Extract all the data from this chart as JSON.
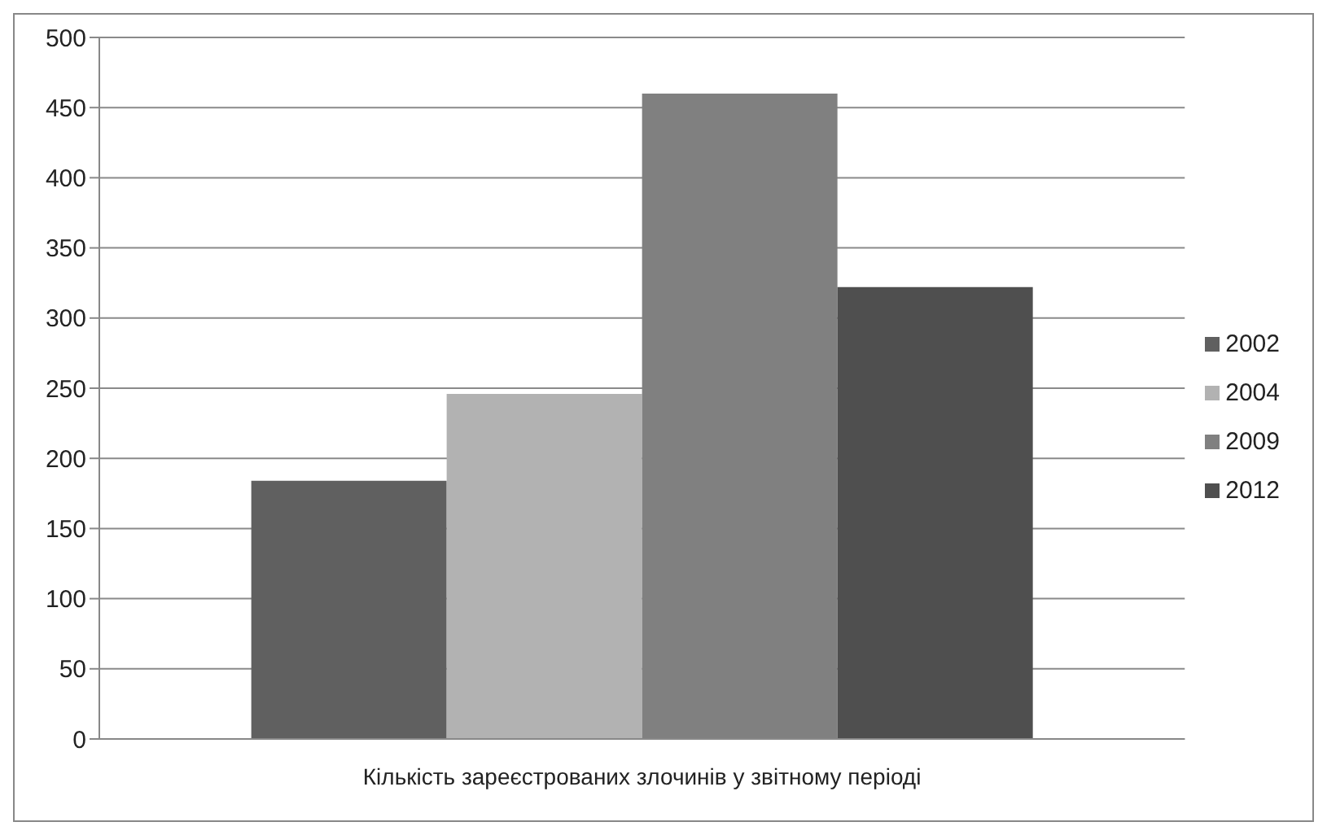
{
  "chart_data": {
    "type": "bar",
    "categories": [
      "Кількість зареєстрованих злочинів у звітному періоді"
    ],
    "series": [
      {
        "name": "2002",
        "color": "#606060",
        "values": [
          184
        ]
      },
      {
        "name": "2004",
        "color": "#b2b2b2",
        "values": [
          246
        ]
      },
      {
        "name": "2009",
        "color": "#808080",
        "values": [
          460
        ]
      },
      {
        "name": "2012",
        "color": "#4f4f4f",
        "values": [
          322
        ]
      }
    ],
    "ylim": [
      0,
      500
    ],
    "yticks": [
      0,
      50,
      100,
      150,
      200,
      250,
      300,
      350,
      400,
      450,
      500
    ],
    "grid": "y",
    "legend": "right"
  }
}
